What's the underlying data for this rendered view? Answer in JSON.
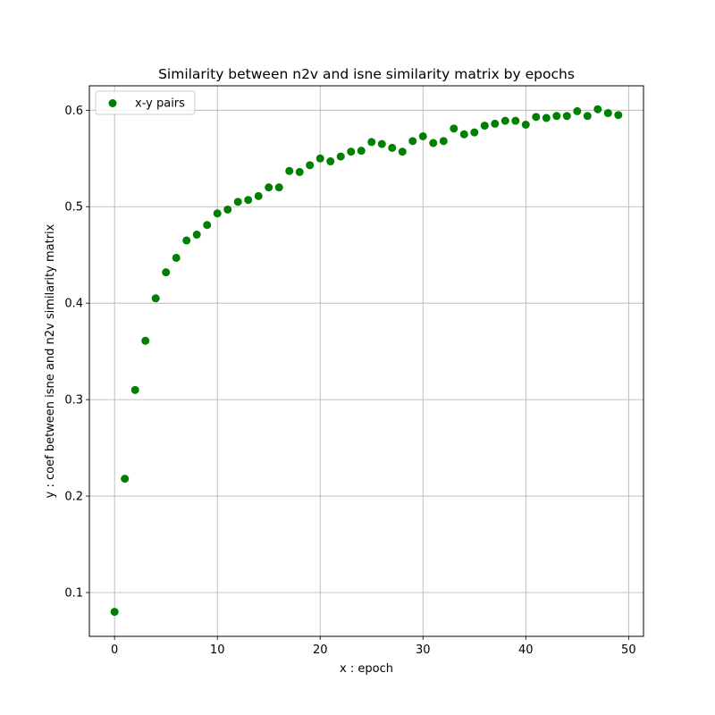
{
  "chart_data": {
    "type": "scatter",
    "title": "Similarity between n2v and isne similarity matrix by epochs",
    "xlabel": "x : epoch",
    "ylabel": "y : coef between isne and n2v similarity matrix",
    "xlim": [
      -2.45,
      51.45
    ],
    "ylim": [
      0.0546,
      0.6253
    ],
    "x_ticks": [
      0,
      10,
      20,
      30,
      40,
      50
    ],
    "x_tick_labels": [
      "0",
      "10",
      "20",
      "30",
      "40",
      "50"
    ],
    "y_ticks": [
      0.1,
      0.2,
      0.3,
      0.4,
      0.5,
      0.6
    ],
    "y_tick_labels": [
      "0.1",
      "0.2",
      "0.3",
      "0.4",
      "0.5",
      "0.6"
    ],
    "grid": true,
    "legend_position": "top-left",
    "series": [
      {
        "name": "x-y pairs",
        "color": "#008000",
        "marker": "circle",
        "x": [
          0,
          1,
          2,
          3,
          4,
          5,
          6,
          7,
          8,
          9,
          10,
          11,
          12,
          13,
          14,
          15,
          16,
          17,
          18,
          19,
          20,
          21,
          22,
          23,
          24,
          25,
          26,
          27,
          28,
          29,
          30,
          31,
          32,
          33,
          34,
          35,
          36,
          37,
          38,
          39,
          40,
          41,
          42,
          43,
          44,
          45,
          46,
          47,
          48,
          49
        ],
        "y": [
          0.08,
          0.218,
          0.31,
          0.361,
          0.405,
          0.432,
          0.447,
          0.465,
          0.471,
          0.481,
          0.493,
          0.497,
          0.505,
          0.507,
          0.511,
          0.52,
          0.52,
          0.537,
          0.536,
          0.543,
          0.55,
          0.547,
          0.552,
          0.557,
          0.558,
          0.567,
          0.565,
          0.561,
          0.557,
          0.568,
          0.573,
          0.566,
          0.568,
          0.581,
          0.575,
          0.577,
          0.584,
          0.586,
          0.589,
          0.589,
          0.585,
          0.593,
          0.592,
          0.594,
          0.594,
          0.599,
          0.594,
          0.601,
          0.597,
          0.595
        ]
      }
    ]
  }
}
